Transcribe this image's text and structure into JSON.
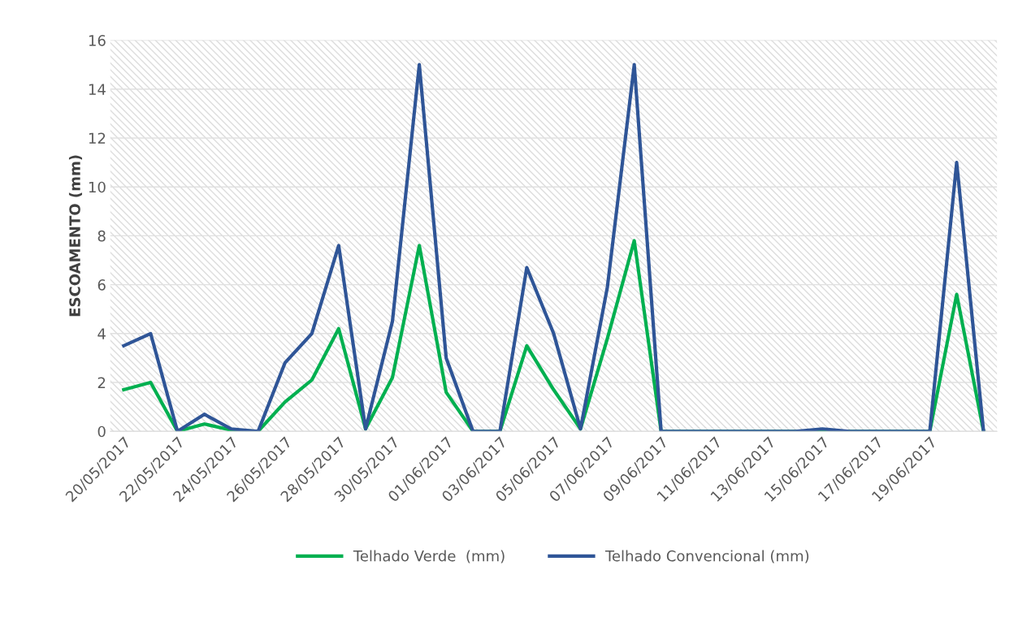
{
  "chart_data": {
    "type": "line",
    "ylabel": "ESCOAMENTO (mm)",
    "categories": [
      "20/05/2017",
      null,
      "22/05/2017",
      null,
      "24/05/2017",
      null,
      "26/05/2017",
      null,
      "28/05/2017",
      null,
      "30/05/2017",
      null,
      "01/06/2017",
      null,
      "03/06/2017",
      null,
      "05/06/2017",
      null,
      "07/06/2017",
      null,
      "09/06/2017",
      null,
      "11/06/2017",
      null,
      "13/06/2017",
      null,
      "15/06/2017",
      null,
      "17/06/2017",
      null,
      "19/06/2017",
      null,
      null
    ],
    "series": [
      {
        "name": "Telhado Verde  (mm)",
        "color": "#00b050",
        "values": [
          1.7,
          2.0,
          0,
          0.3,
          0.05,
          0,
          1.2,
          2.1,
          4.2,
          0.1,
          2.2,
          7.6,
          1.6,
          0,
          0,
          3.5,
          1.7,
          0.1,
          3.8,
          7.8,
          0,
          0,
          0,
          0,
          0,
          0,
          0,
          0,
          0,
          0,
          0,
          5.6,
          0
        ]
      },
      {
        "name": "Telhado Convencional (mm)",
        "color": "#2f5597",
        "values": [
          3.5,
          4.0,
          0,
          0.7,
          0.1,
          0,
          2.8,
          4.0,
          7.6,
          0.1,
          4.5,
          15.0,
          3.0,
          0,
          0,
          6.7,
          4.0,
          0.1,
          5.9,
          15.0,
          0,
          0,
          0,
          0,
          0,
          0,
          0.1,
          0,
          0,
          0,
          0,
          11.0,
          0
        ]
      }
    ],
    "ylim": [
      0,
      16
    ],
    "yticks": [
      0,
      2,
      4,
      6,
      8,
      10,
      12,
      14,
      16
    ],
    "grid": "y",
    "legend": "bottom"
  }
}
